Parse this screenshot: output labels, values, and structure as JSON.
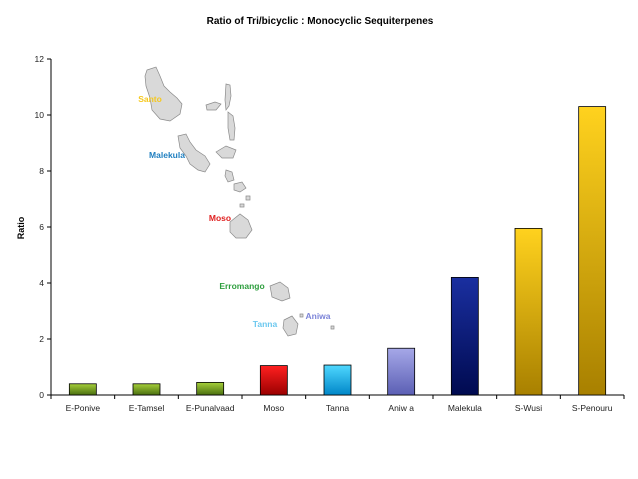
{
  "chart_data": {
    "type": "bar",
    "title": "Ratio of Tri/bicyclic : Monocyclic Sequiterpenes",
    "xlabel": "",
    "ylabel": "Ratio",
    "ylim": [
      0,
      12
    ],
    "yticks": [
      0,
      2,
      4,
      6,
      8,
      10,
      12
    ],
    "grid": false,
    "legend": "none",
    "categories": [
      "E-Ponive",
      "E-Tamsel",
      "E-Punalvaad",
      "Moso",
      "Tanna",
      "Aniw a",
      "Malekula",
      "S-Wusi",
      "S-Penouru"
    ],
    "values": [
      0.4,
      0.4,
      0.45,
      1.05,
      1.07,
      1.67,
      4.2,
      5.95,
      10.3
    ],
    "bar_colors": [
      [
        "#a6d03a",
        "#4a6f10"
      ],
      [
        "#a6d03a",
        "#4a6f10"
      ],
      [
        "#a6d03a",
        "#4a6f10"
      ],
      [
        "#ff2020",
        "#9a0000"
      ],
      [
        "#4fd8ff",
        "#0086c8"
      ],
      [
        "#a6a8e8",
        "#5b5fb4"
      ],
      [
        "#1a2fa0",
        "#000a50"
      ],
      [
        "#ffd21e",
        "#a88000"
      ],
      [
        "#ffd21e",
        "#a88000"
      ]
    ],
    "map_labels": [
      {
        "text": "Santo",
        "color": "#f5c81e"
      },
      {
        "text": "Malekula",
        "color": "#1f7fc0"
      },
      {
        "text": "Moso",
        "color": "#e02020"
      },
      {
        "text": "Erromango",
        "color": "#2e9e3e"
      },
      {
        "text": "Aniwa",
        "color": "#7c84d8"
      },
      {
        "text": "Tanna",
        "color": "#6cc8ef"
      }
    ]
  }
}
